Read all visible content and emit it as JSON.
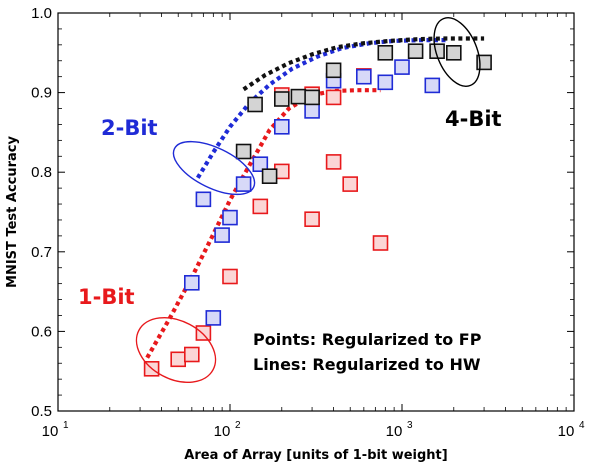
{
  "chart_data": {
    "type": "scatter",
    "title": "",
    "xlabel": "Area of Array [units of 1-bit weight]",
    "ylabel": "MNIST Test Accuracy",
    "xscale": "log",
    "xlim": [
      10,
      10000
    ],
    "ylim": [
      0.5,
      1.0
    ],
    "x_ticks": [
      {
        "base": "10",
        "exp": "1",
        "value": 10
      },
      {
        "base": "10",
        "exp": "2",
        "value": 100
      },
      {
        "base": "10",
        "exp": "3",
        "value": 1000
      },
      {
        "base": "10",
        "exp": "4",
        "value": 10000
      }
    ],
    "y_ticks": [
      "0.5",
      "0.6",
      "0.7",
      "0.8",
      "0.9",
      "1.0"
    ],
    "y_tick_values": [
      0.5,
      0.6,
      0.7,
      0.8,
      0.9,
      1.0
    ],
    "grid": false,
    "series": [
      {
        "name": "1-Bit",
        "color": "#e8191c",
        "points": [
          [
            35,
            0.553
          ],
          [
            50,
            0.565
          ],
          [
            60,
            0.571
          ],
          [
            70,
            0.598
          ],
          [
            100,
            0.669
          ],
          [
            150,
            0.757
          ],
          [
            200,
            0.801
          ],
          [
            300,
            0.741
          ],
          [
            400,
            0.813
          ],
          [
            500,
            0.785
          ],
          [
            750,
            0.711
          ],
          [
            200,
            0.897
          ],
          [
            300,
            0.898
          ],
          [
            400,
            0.894
          ],
          [
            600,
            0.921
          ]
        ],
        "fit_line": [
          [
            33,
            0.567
          ],
          [
            45,
            0.618
          ],
          [
            60,
            0.668
          ],
          [
            80,
            0.722
          ],
          [
            100,
            0.765
          ],
          [
            130,
            0.809
          ],
          [
            170,
            0.853
          ],
          [
            220,
            0.88
          ],
          [
            300,
            0.897
          ],
          [
            400,
            0.902
          ],
          [
            550,
            0.903
          ],
          [
            750,
            0.903
          ]
        ]
      },
      {
        "name": "2-Bit",
        "color": "#1f2bd6",
        "points": [
          [
            60,
            0.661
          ],
          [
            70,
            0.766
          ],
          [
            80,
            0.617
          ],
          [
            90,
            0.721
          ],
          [
            100,
            0.743
          ],
          [
            120,
            0.785
          ],
          [
            150,
            0.81
          ],
          [
            200,
            0.857
          ],
          [
            300,
            0.877
          ],
          [
            400,
            0.915
          ],
          [
            600,
            0.92
          ],
          [
            800,
            0.913
          ],
          [
            1000,
            0.932
          ],
          [
            1500,
            0.909
          ]
        ],
        "fit_line": [
          [
            65,
            0.793
          ],
          [
            80,
            0.825
          ],
          [
            100,
            0.857
          ],
          [
            130,
            0.887
          ],
          [
            170,
            0.91
          ],
          [
            230,
            0.93
          ],
          [
            320,
            0.945
          ],
          [
            450,
            0.956
          ],
          [
            650,
            0.962
          ],
          [
            900,
            0.965
          ],
          [
            1300,
            0.966
          ],
          [
            1800,
            0.966
          ]
        ]
      },
      {
        "name": "4-Bit",
        "color": "#111111",
        "points": [
          [
            120,
            0.826
          ],
          [
            140,
            0.885
          ],
          [
            170,
            0.795
          ],
          [
            200,
            0.892
          ],
          [
            250,
            0.895
          ],
          [
            300,
            0.894
          ],
          [
            400,
            0.928
          ],
          [
            800,
            0.95
          ],
          [
            1200,
            0.952
          ],
          [
            1600,
            0.952
          ],
          [
            2000,
            0.95
          ],
          [
            3000,
            0.938
          ]
        ],
        "fit_line": [
          [
            120,
            0.904
          ],
          [
            160,
            0.922
          ],
          [
            220,
            0.937
          ],
          [
            300,
            0.948
          ],
          [
            420,
            0.957
          ],
          [
            600,
            0.962
          ],
          [
            850,
            0.965
          ],
          [
            1200,
            0.967
          ],
          [
            1700,
            0.968
          ],
          [
            2400,
            0.968
          ],
          [
            3000,
            0.968
          ]
        ]
      }
    ],
    "annotations": {
      "one_bit": "1-Bit",
      "two_bit": "2-Bit",
      "four_bit": "4-Bit",
      "points_note": "Points: Regularized to FP",
      "lines_note": "Lines:  Regularized to HW"
    }
  }
}
